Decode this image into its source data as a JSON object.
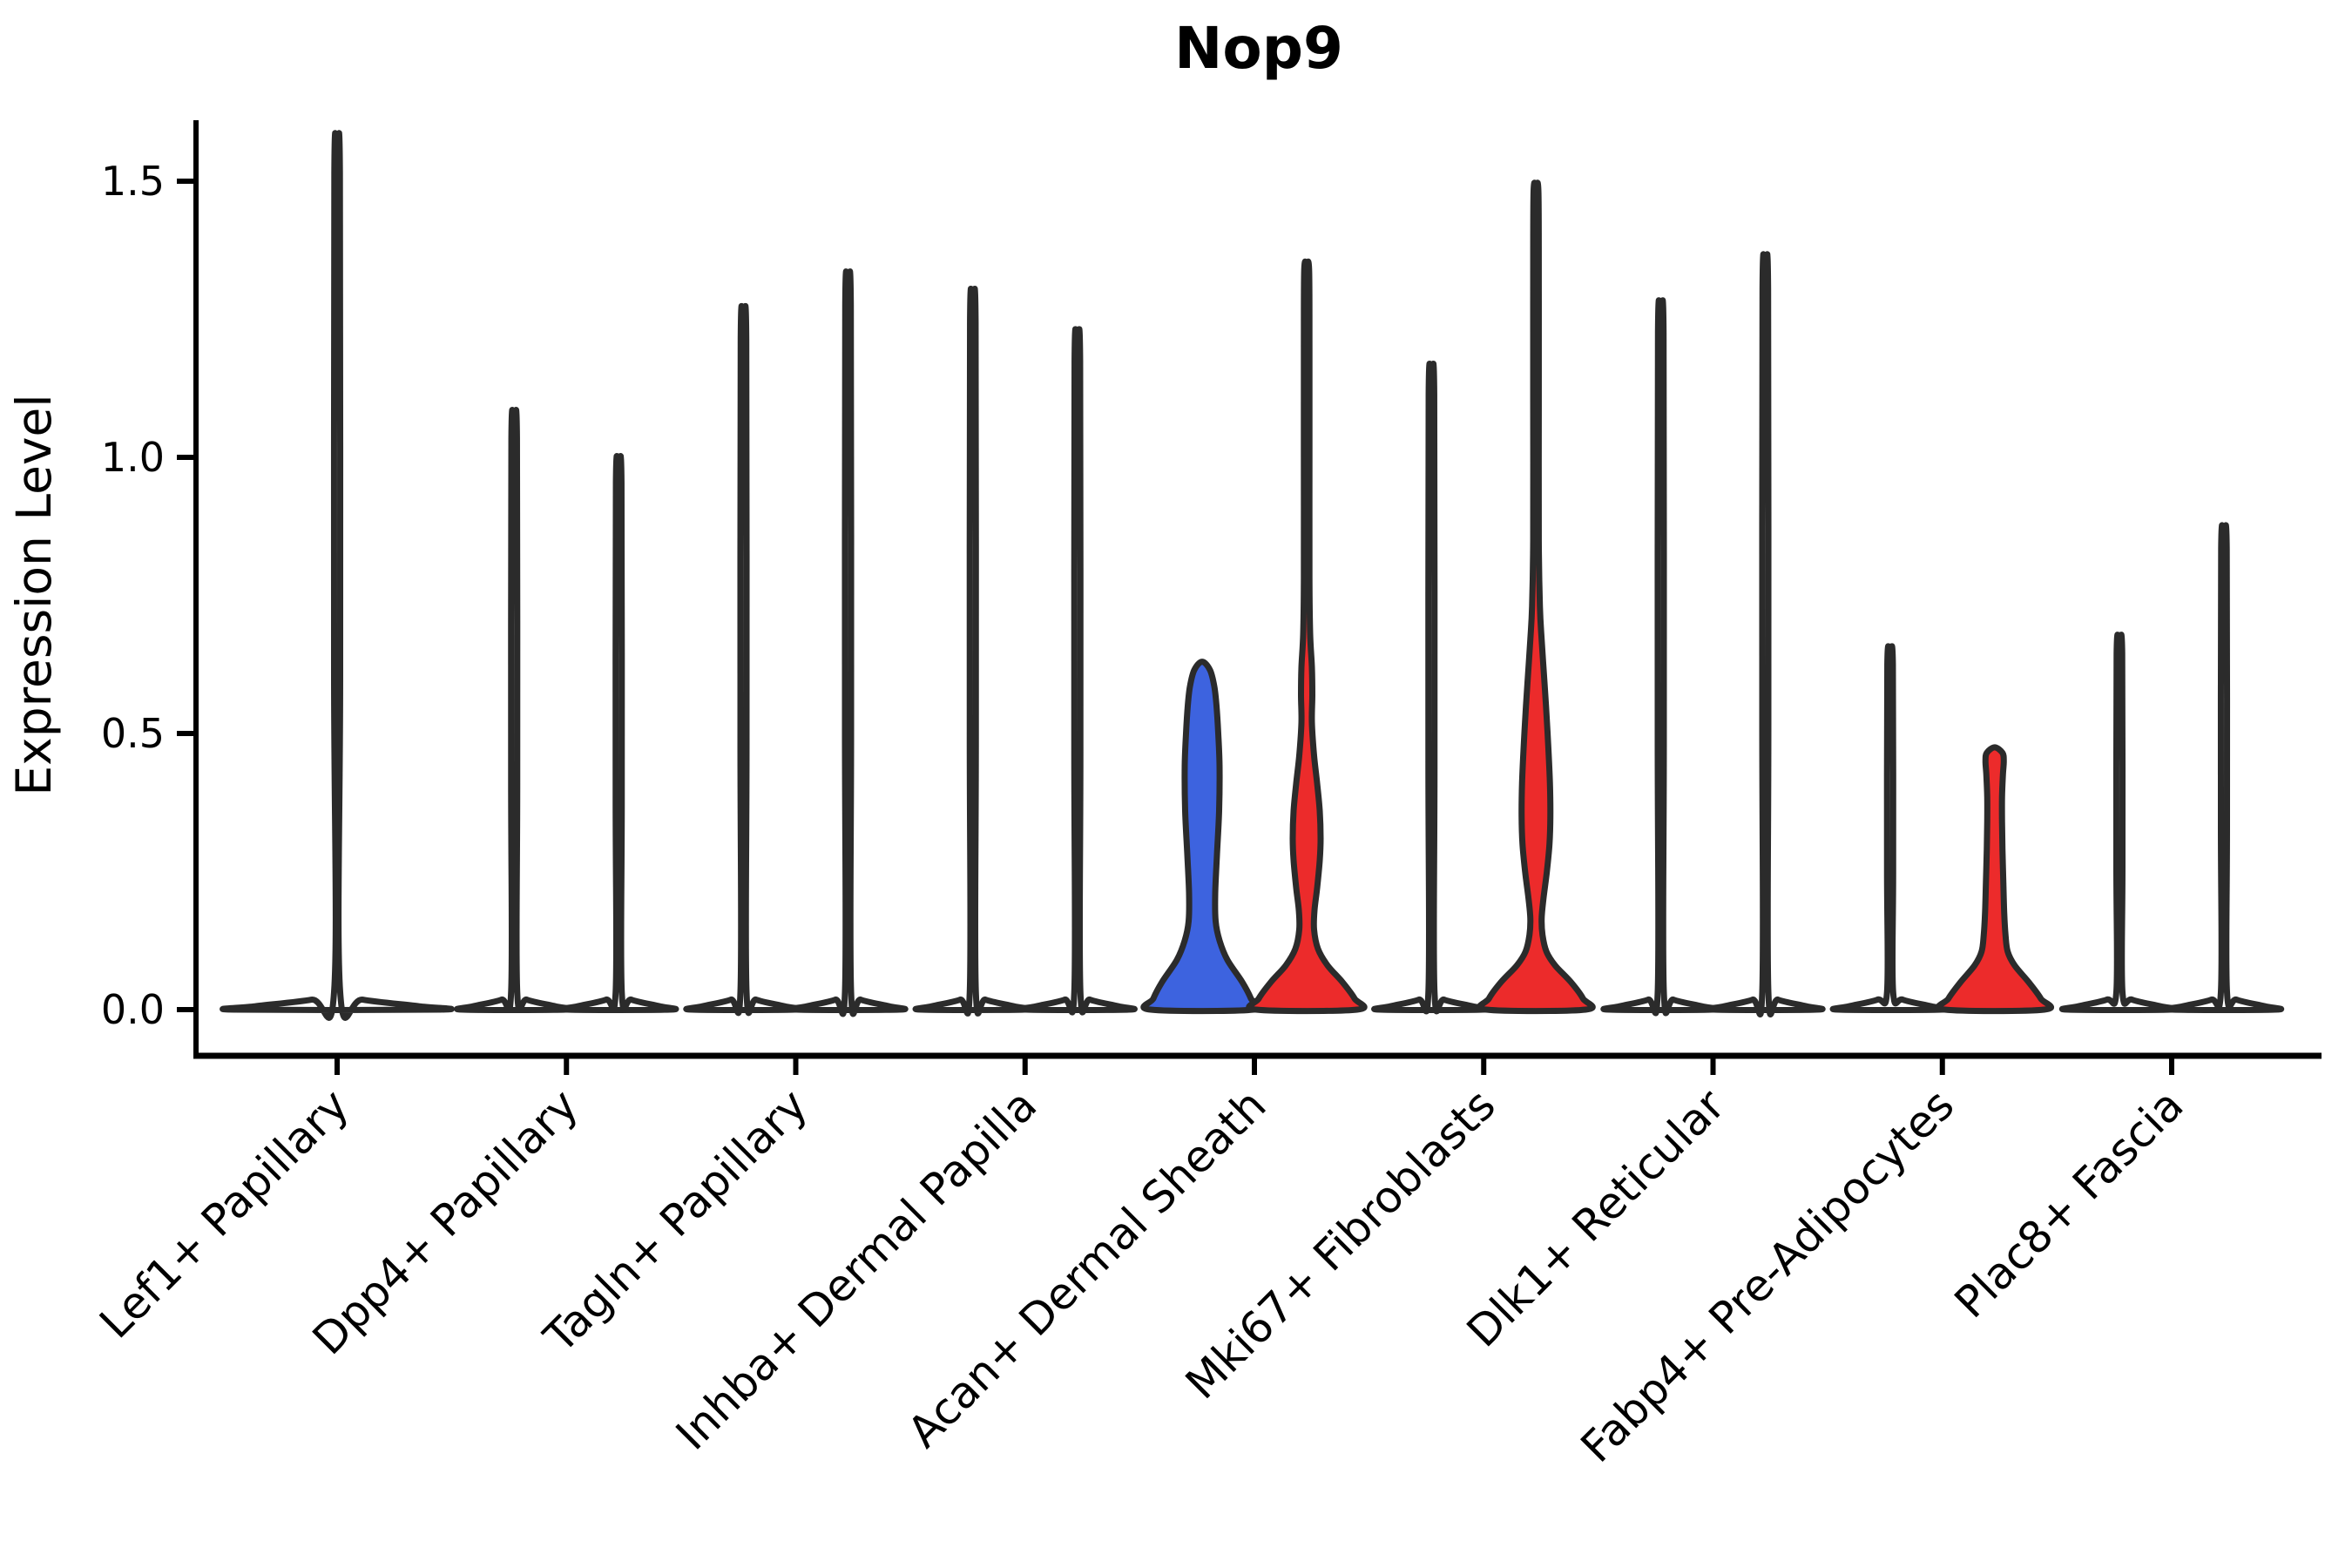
{
  "chart_data": {
    "type": "violin",
    "title": "Nop9",
    "ylabel": "Expression Level",
    "xlabel": "",
    "yticks": [
      0.0,
      0.5,
      1.0,
      1.5
    ],
    "ylim": [
      -0.08,
      1.62
    ],
    "grid": false,
    "legend": "none",
    "colors": {
      "blue": "#3D63DF",
      "red": "#EC2B2B",
      "outline": "#2B2B2B",
      "axis": "#000000",
      "background": "#FFFFFF"
    },
    "categories": [
      "Lef1+ Papillary",
      "Dpp4+ Papillary",
      "Tagln+ Papillary",
      "Inhba+ Dermal Papilla",
      "Acan+ Dermal Sheath",
      "Mki67+ Fibroblasts",
      "Dlk1+ Reticular",
      "Fabp4+ Pre-Adipocytes",
      "Plac8+ Fascia"
    ],
    "groups": [
      {
        "label": "Lef1+ Papillary",
        "violins": [
          {
            "position": "center",
            "fill": "white",
            "shape": "spike",
            "max": 1.53
          }
        ]
      },
      {
        "label": "Dpp4+ Papillary",
        "violins": [
          {
            "position": "left",
            "fill": "white",
            "shape": "spike",
            "max": 1.05
          },
          {
            "position": "right",
            "fill": "white",
            "shape": "spike",
            "max": 0.97
          }
        ]
      },
      {
        "label": "Tagln+ Papillary",
        "violins": [
          {
            "position": "left",
            "fill": "white",
            "shape": "spike",
            "max": 1.23
          },
          {
            "position": "right",
            "fill": "white",
            "shape": "spike",
            "max": 1.29
          }
        ]
      },
      {
        "label": "Inhba+ Dermal Papilla",
        "violins": [
          {
            "position": "left",
            "fill": "white",
            "shape": "spike",
            "max": 1.26
          },
          {
            "position": "right",
            "fill": "white",
            "shape": "spike",
            "max": 1.19
          }
        ]
      },
      {
        "label": "Acan+ Dermal Sheath",
        "violins": [
          {
            "position": "left",
            "fill": "blue",
            "shape": "body",
            "max": 0.63,
            "profile": [
              [
                0,
                59
              ],
              [
                0.02,
                56
              ],
              [
                0.05,
                46
              ],
              [
                0.09,
                29
              ],
              [
                0.125,
                20
              ],
              [
                0.16,
                15.5
              ],
              [
                0.21,
                15
              ],
              [
                0.28,
                17
              ],
              [
                0.36,
                19.5
              ],
              [
                0.44,
                20
              ],
              [
                0.5,
                18.5
              ],
              [
                0.55,
                16.5
              ],
              [
                0.585,
                14
              ],
              [
                0.615,
                9
              ],
              [
                0.63,
                0
              ]
            ]
          },
          {
            "position": "right",
            "fill": "red",
            "shape": "body",
            "max": 1.35,
            "profile": [
              [
                0,
                58
              ],
              [
                0.02,
                55
              ],
              [
                0.05,
                41
              ],
              [
                0.08,
                24
              ],
              [
                0.11,
                13
              ],
              [
                0.145,
                8.5
              ],
              [
                0.18,
                9
              ],
              [
                0.22,
                12
              ],
              [
                0.27,
                15
              ],
              [
                0.31,
                16
              ],
              [
                0.36,
                15
              ],
              [
                0.41,
                12
              ],
              [
                0.46,
                8.5
              ],
              [
                0.52,
                6
              ],
              [
                0.57,
                6.5
              ],
              [
                0.62,
                6
              ],
              [
                0.68,
                4
              ],
              [
                0.78,
                3.2
              ],
              [
                1.0,
                3.2
              ],
              [
                1.2,
                3.2
              ],
              [
                1.34,
                2.8
              ],
              [
                1.35,
                0
              ]
            ]
          }
        ]
      },
      {
        "label": "Mki67+ Fibroblasts",
        "violins": [
          {
            "position": "left",
            "fill": "white",
            "shape": "spike",
            "max": 1.13
          },
          {
            "position": "right",
            "fill": "red",
            "shape": "body",
            "max": 1.49,
            "profile": [
              [
                0,
                57
              ],
              [
                0.02,
                54
              ],
              [
                0.05,
                40
              ],
              [
                0.08,
                22
              ],
              [
                0.105,
                12
              ],
              [
                0.135,
                7.5
              ],
              [
                0.165,
                6.5
              ],
              [
                0.2,
                8.5
              ],
              [
                0.25,
                12.5
              ],
              [
                0.3,
                15.5
              ],
              [
                0.35,
                16.5
              ],
              [
                0.41,
                16
              ],
              [
                0.48,
                14
              ],
              [
                0.55,
                11.5
              ],
              [
                0.61,
                9
              ],
              [
                0.67,
                6.5
              ],
              [
                0.73,
                4.5
              ],
              [
                0.85,
                3.2
              ],
              [
                1.1,
                3.2
              ],
              [
                1.3,
                3.2
              ],
              [
                1.48,
                2.8
              ],
              [
                1.49,
                0
              ]
            ]
          }
        ]
      },
      {
        "label": "Dlk1+ Reticular",
        "violins": [
          {
            "position": "left",
            "fill": "white",
            "shape": "spike",
            "max": 1.24
          },
          {
            "position": "right",
            "fill": "white",
            "shape": "spike",
            "max": 1.32
          }
        ]
      },
      {
        "label": "Fabp4+ Pre-Adipocytes",
        "violins": [
          {
            "position": "left",
            "fill": "white",
            "shape": "spike",
            "max": 0.64
          },
          {
            "position": "right",
            "fill": "red",
            "shape": "body",
            "max": 0.475,
            "profile": [
              [
                0,
                57
              ],
              [
                0.02,
                53
              ],
              [
                0.05,
                39
              ],
              [
                0.08,
                23
              ],
              [
                0.105,
                15
              ],
              [
                0.135,
                12.5
              ],
              [
                0.175,
                11
              ],
              [
                0.23,
                10
              ],
              [
                0.29,
                9
              ],
              [
                0.34,
                8.5
              ],
              [
                0.385,
                8.5
              ],
              [
                0.425,
                9.5
              ],
              [
                0.45,
                10.5
              ],
              [
                0.465,
                9
              ],
              [
                0.475,
                0
              ]
            ]
          }
        ]
      },
      {
        "label": "Plac8+ Fascia",
        "violins": [
          {
            "position": "left",
            "fill": "white",
            "shape": "spike",
            "max": 0.66
          },
          {
            "position": "right",
            "fill": "white",
            "shape": "spike",
            "max": 0.85
          }
        ]
      }
    ]
  }
}
